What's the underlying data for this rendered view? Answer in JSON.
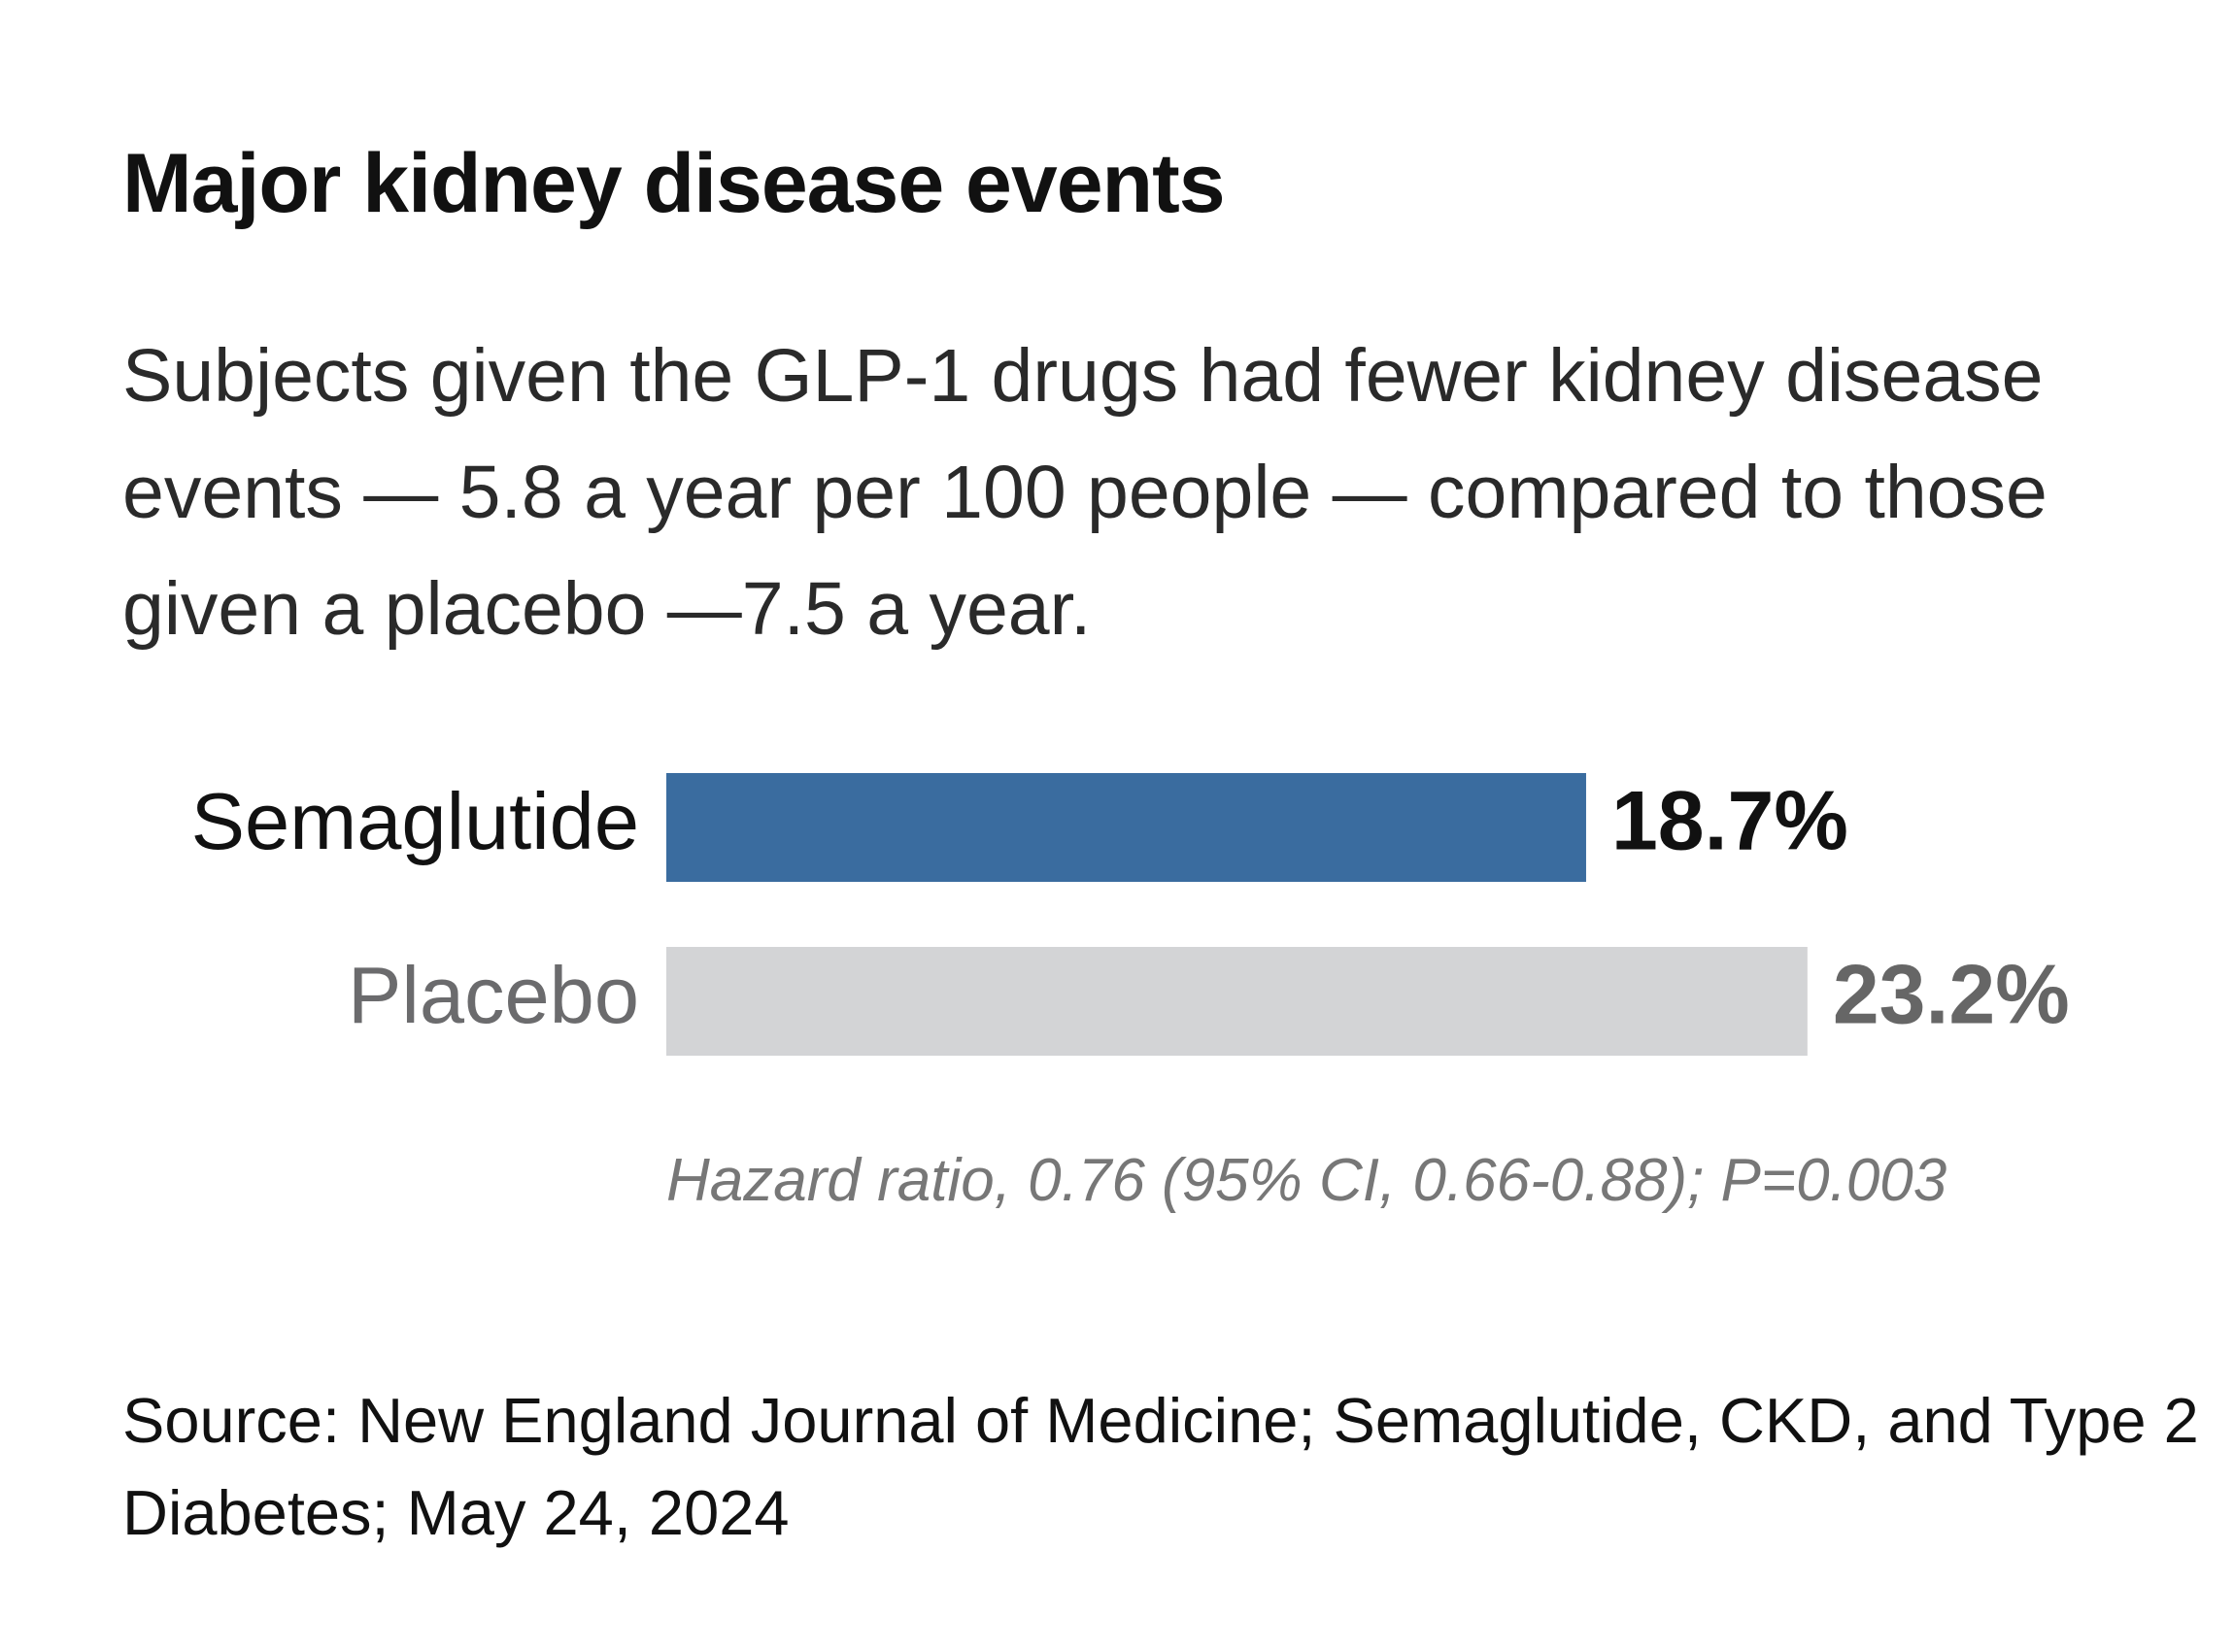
{
  "chart_data": {
    "type": "bar",
    "orientation": "horizontal",
    "title": "Major kidney disease events",
    "subtitle": "Subjects given the GLP-1 drugs had fewer kidney disease events — 5.8 a year per 100 people — compared to those given a placebo —7.5 a year.",
    "categories": [
      "Semaglutide",
      "Placebo"
    ],
    "values": [
      18.7,
      23.2
    ],
    "value_labels": [
      "18.7%",
      "23.2%"
    ],
    "colors": [
      "#3a6c9f",
      "#d3d4d6"
    ],
    "label_colors": [
      "#111111",
      "#6b6b6d"
    ],
    "note": "Hazard ratio, 0.76 (95% CI, 0.66-0.88); P=0.003",
    "source": "Source: New England Journal of Medicine; Semaglutide, CKD, and Type 2 Diabetes; May 24, 2024"
  }
}
